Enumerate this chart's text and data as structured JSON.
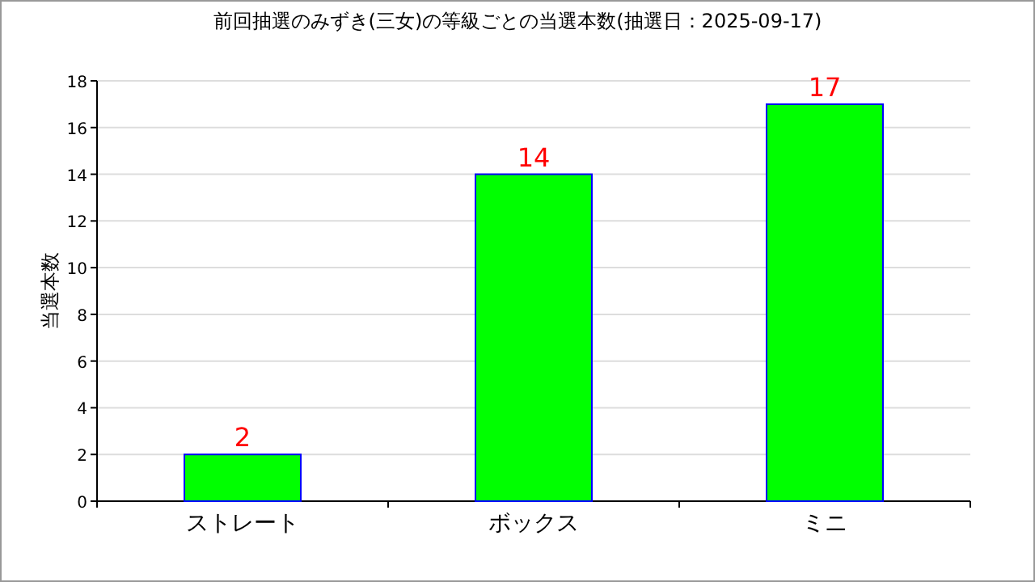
{
  "chart_data": {
    "type": "bar",
    "title": "前回抽選のみずき(三女)の等級ごとの当選本数(抽選日：2025-09-17)",
    "ylabel": "当選本数",
    "categories": [
      "ストレート",
      "ボックス",
      "ミニ"
    ],
    "values": [
      2,
      14,
      17
    ],
    "color": "#00ff00",
    "ylim": [
      0,
      18
    ],
    "yticks": [
      0,
      2,
      4,
      6,
      8,
      10,
      12,
      14,
      16,
      18
    ],
    "grid": "y",
    "data_labels": true
  }
}
